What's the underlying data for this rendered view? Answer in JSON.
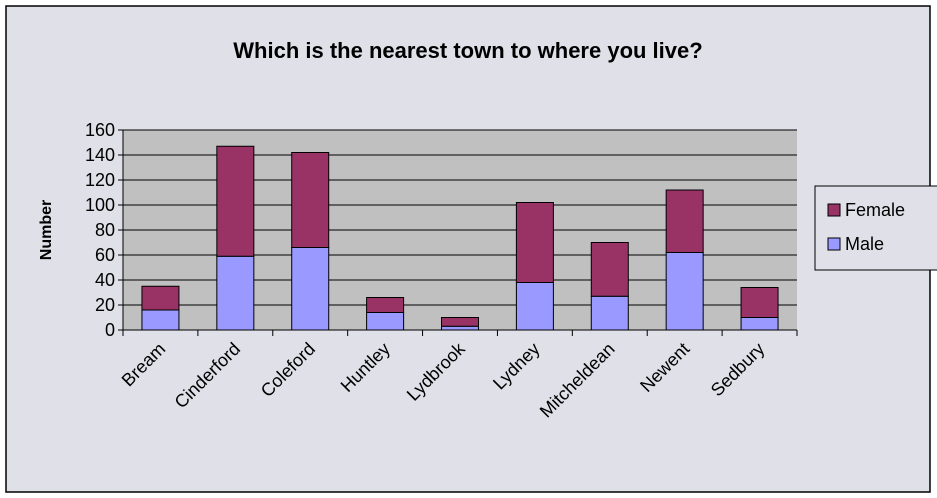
{
  "chart_data": {
    "type": "stacked_bar",
    "title": "Which is the nearest town to where you live?",
    "y_label": "Number",
    "categories": [
      "Bream",
      "Cinderford",
      "Coleford",
      "Huntley",
      "Lydbrook",
      "Lydney",
      "Mitcheldean",
      "Newent",
      "Sedbury"
    ],
    "series": [
      {
        "name": "Male",
        "color": "#9999ff",
        "values": [
          16,
          59,
          66,
          14,
          3,
          38,
          27,
          62,
          10
        ]
      },
      {
        "name": "Female",
        "color": "#993366",
        "values": [
          19,
          88,
          76,
          12,
          7,
          64,
          43,
          50,
          24
        ]
      }
    ],
    "ylim": [
      0,
      160
    ],
    "yticks": [
      0,
      20,
      40,
      60,
      80,
      100,
      120,
      140,
      160
    ],
    "grid": true,
    "legend": "right"
  }
}
